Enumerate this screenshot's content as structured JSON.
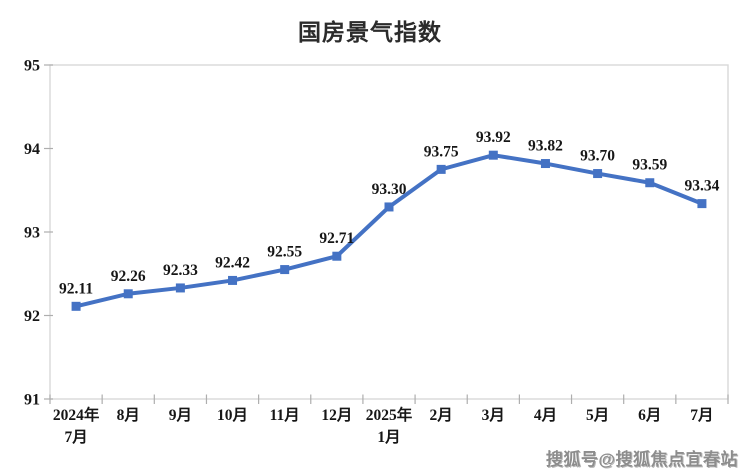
{
  "watermark": {
    "text": "搜狐号@搜狐焦点宜春站"
  },
  "chart_data": {
    "type": "line",
    "title": "国房景气指数",
    "categories": [
      "2024年\n7月",
      "8月",
      "9月",
      "10月",
      "11月",
      "12月",
      "2025年\n1月",
      "2月",
      "3月",
      "4月",
      "5月",
      "6月",
      "7月"
    ],
    "series": [
      {
        "name": "国房景气指数",
        "values": [
          92.11,
          92.26,
          92.33,
          92.42,
          92.55,
          92.71,
          93.3,
          93.75,
          93.92,
          93.82,
          93.7,
          93.59,
          93.34
        ]
      }
    ],
    "data_labels": [
      "92.11",
      "92.26",
      "92.33",
      "92.42",
      "92.55",
      "92.71",
      "93.30",
      "93.75",
      "93.92",
      "93.82",
      "93.70",
      "93.59",
      "93.34"
    ],
    "xlabel": "",
    "ylabel": "",
    "y_ticks": [
      "95",
      "94",
      "93",
      "92",
      "91"
    ],
    "ylim": [
      91,
      95
    ],
    "grid": false,
    "legend": "none",
    "marker": "square",
    "line_color": "#4472C4",
    "axis_color": "#d9d9d9",
    "tick_color": "#aeaeae",
    "label_color": "#161616"
  }
}
